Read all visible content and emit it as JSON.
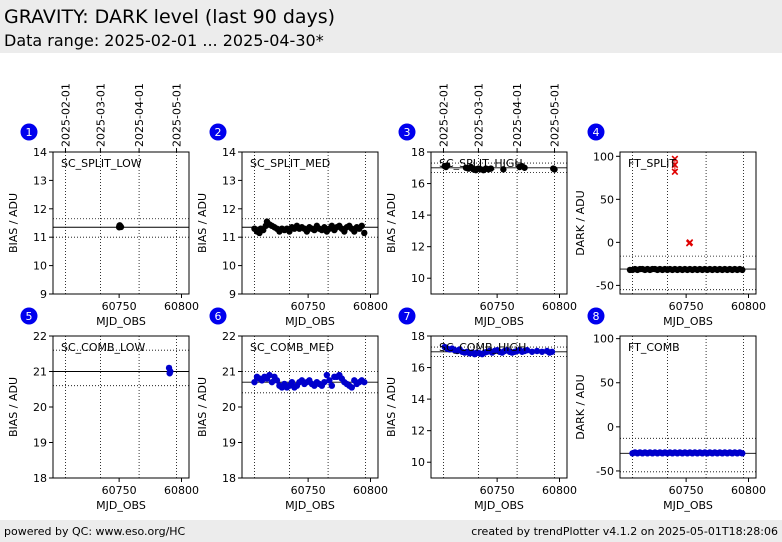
{
  "header": {
    "title": "GRAVITY: DARK level (last 90 days)",
    "subtitle": "Data range: 2025-02-01 ... 2025-04-30*"
  },
  "footer": {
    "left": "powered by QC: www.eso.org/HC",
    "right": "created by trendPlotter v4.1.2 on 2025-05-01T18:28:06"
  },
  "date_ticks": [
    {
      "label": "2025-02-01",
      "mjd": 60707
    },
    {
      "label": "2025-03-01",
      "mjd": 60735
    },
    {
      "label": "2025-04-01",
      "mjd": 60766
    },
    {
      "label": "2025-05-01",
      "mjd": 60796
    }
  ],
  "chart_data": [
    {
      "type": "scatter",
      "badge": "1",
      "label": "SC_SPLIT_LOW",
      "xlabel": "MJD_OBS",
      "ylabel": "BIAS / ADU",
      "xlim": [
        60697,
        60806
      ],
      "ylim": [
        9,
        14
      ],
      "yticks": [
        9,
        10,
        11,
        12,
        13,
        14
      ],
      "xticks": [
        60750,
        60800
      ],
      "date_axis": true,
      "ref_lines": [
        11.35
      ],
      "dotted_lines": [
        11.0,
        11.65
      ],
      "color": "#000000",
      "marker": "circle",
      "x_mjd": [],
      "points": [
        [
          60750,
          11.35
        ],
        [
          60750.5,
          11.42
        ],
        [
          60751,
          11.38
        ],
        [
          60751.5,
          11.36
        ],
        [
          60750.2,
          11.4
        ]
      ]
    },
    {
      "type": "scatter",
      "badge": "2",
      "label": "SC_SPLIT_MED",
      "xlabel": "MJD_OBS",
      "ylabel": "BIAS / ADU",
      "xlim": [
        60697,
        60806
      ],
      "ylim": [
        9,
        14
      ],
      "yticks": [
        9,
        10,
        11,
        12,
        13,
        14
      ],
      "xticks": [
        60750,
        60800
      ],
      "date_axis": false,
      "ref_lines": [
        11.35
      ],
      "dotted_lines": [
        11.0,
        11.65
      ],
      "color": "#000000",
      "marker": "circle",
      "points": [
        [
          60707,
          11.3
        ],
        [
          60709,
          11.2
        ],
        [
          60711,
          11.15
        ],
        [
          60712,
          11.3
        ],
        [
          60714,
          11.25
        ],
        [
          60716,
          11.4
        ],
        [
          60717,
          11.55
        ],
        [
          60719,
          11.45
        ],
        [
          60721,
          11.4
        ],
        [
          60723,
          11.35
        ],
        [
          60725,
          11.3
        ],
        [
          60727,
          11.2
        ],
        [
          60729,
          11.3
        ],
        [
          60731,
          11.25
        ],
        [
          60733,
          11.3
        ],
        [
          60735,
          11.2
        ],
        [
          60737,
          11.35
        ],
        [
          60739,
          11.3
        ],
        [
          60741,
          11.4
        ],
        [
          60743,
          11.3
        ],
        [
          60745,
          11.35
        ],
        [
          60747,
          11.3
        ],
        [
          60749,
          11.2
        ],
        [
          60751,
          11.35
        ],
        [
          60753,
          11.3
        ],
        [
          60755,
          11.25
        ],
        [
          60757,
          11.4
        ],
        [
          60759,
          11.3
        ],
        [
          60761,
          11.25
        ],
        [
          60763,
          11.35
        ],
        [
          60765,
          11.2
        ],
        [
          60767,
          11.3
        ],
        [
          60769,
          11.4
        ],
        [
          60771,
          11.25
        ],
        [
          60773,
          11.35
        ],
        [
          60775,
          11.4
        ],
        [
          60777,
          11.3
        ],
        [
          60779,
          11.2
        ],
        [
          60781,
          11.35
        ],
        [
          60783,
          11.4
        ],
        [
          60785,
          11.3
        ],
        [
          60787,
          11.2
        ],
        [
          60789,
          11.35
        ],
        [
          60791,
          11.3
        ],
        [
          60793,
          11.4
        ],
        [
          60795,
          11.15
        ]
      ]
    },
    {
      "type": "scatter",
      "badge": "3",
      "label": "SC_SPLIT_HIGH",
      "xlabel": "MJD_OBS",
      "ylabel": "BIAS / ADU",
      "xlim": [
        60697,
        60806
      ],
      "ylim": [
        9,
        18
      ],
      "yticks": [
        10,
        12,
        14,
        16,
        18
      ],
      "xticks": [
        60750,
        60800
      ],
      "date_axis": true,
      "ref_lines": [
        17.0
      ],
      "dotted_lines": [
        16.7,
        17.3
      ],
      "color": "#000000",
      "marker": "circle",
      "points": [
        [
          60708,
          17.1
        ],
        [
          60709,
          17.05
        ],
        [
          60710,
          17.15
        ],
        [
          60725,
          17.0
        ],
        [
          60727,
          16.95
        ],
        [
          60729,
          17.05
        ],
        [
          60731,
          16.9
        ],
        [
          60733,
          16.85
        ],
        [
          60735,
          16.95
        ],
        [
          60737,
          16.9
        ],
        [
          60739,
          16.85
        ],
        [
          60741,
          16.95
        ],
        [
          60743,
          16.9
        ],
        [
          60745,
          16.95
        ],
        [
          60755,
          16.9
        ],
        [
          60768,
          17.05
        ],
        [
          60770,
          17.1
        ],
        [
          60772,
          17.0
        ],
        [
          60795,
          16.95
        ],
        [
          60796,
          16.9
        ]
      ]
    },
    {
      "type": "scatter",
      "badge": "4",
      "label": "FT_SPLIT",
      "xlabel": "MJD_OBS",
      "ylabel": "DARK / ADU",
      "xlim": [
        60697,
        60806
      ],
      "ylim": [
        -60,
        105
      ],
      "yticks": [
        -50,
        0,
        50,
        100
      ],
      "xticks": [
        60750,
        60800
      ],
      "date_axis": false,
      "ref_lines": [
        -31
      ],
      "dotted_lines": [
        -16,
        -55
      ],
      "color": "#000000",
      "marker": "circle",
      "points": [
        [
          60705,
          -32
        ],
        [
          60707,
          -32
        ],
        [
          60709,
          -31
        ],
        [
          60711,
          -32
        ],
        [
          60713,
          -31
        ],
        [
          60715,
          -31
        ],
        [
          60717,
          -32
        ],
        [
          60719,
          -31
        ],
        [
          60721,
          -32
        ],
        [
          60723,
          -31
        ],
        [
          60725,
          -31
        ],
        [
          60727,
          -32
        ],
        [
          60729,
          -31
        ],
        [
          60731,
          -32
        ],
        [
          60733,
          -31
        ],
        [
          60735,
          -32
        ],
        [
          60737,
          -31
        ],
        [
          60739,
          -32
        ],
        [
          60741,
          -31
        ],
        [
          60743,
          -32
        ],
        [
          60745,
          -31
        ],
        [
          60747,
          -32
        ],
        [
          60749,
          -31
        ],
        [
          60751,
          -32
        ],
        [
          60753,
          -31
        ],
        [
          60755,
          -32
        ],
        [
          60757,
          -31
        ],
        [
          60759,
          -32
        ],
        [
          60761,
          -31
        ],
        [
          60763,
          -32
        ],
        [
          60765,
          -31
        ],
        [
          60767,
          -32
        ],
        [
          60769,
          -31
        ],
        [
          60771,
          -32
        ],
        [
          60773,
          -31
        ],
        [
          60775,
          -32
        ],
        [
          60777,
          -31
        ],
        [
          60779,
          -32
        ],
        [
          60781,
          -31
        ],
        [
          60783,
          -32
        ],
        [
          60785,
          -31
        ],
        [
          60787,
          -32
        ],
        [
          60789,
          -31
        ],
        [
          60791,
          -32
        ],
        [
          60793,
          -31
        ],
        [
          60795,
          -32
        ]
      ],
      "extra": {
        "color": "#e00000",
        "marker": "x",
        "points": [
          [
            60741,
            97
          ],
          [
            60741,
            90
          ],
          [
            60741,
            82
          ],
          [
            60753,
            0
          ],
          [
            60752.5,
            -1
          ]
        ]
      }
    },
    {
      "type": "scatter",
      "badge": "5",
      "label": "SC_COMB_LOW",
      "xlabel": "MJD_OBS",
      "ylabel": "BIAS / ADU",
      "xlim": [
        60697,
        60806
      ],
      "ylim": [
        18,
        22
      ],
      "yticks": [
        18,
        19,
        20,
        21,
        22
      ],
      "xticks": [
        60750,
        60800
      ],
      "date_axis": false,
      "ref_lines": [
        21.0
      ],
      "dotted_lines": [
        20.6,
        21.6
      ],
      "color": "#0000cc",
      "marker": "circle",
      "points": [
        [
          60790,
          21.1
        ],
        [
          60790.5,
          20.95
        ],
        [
          60791,
          21.0
        ]
      ]
    },
    {
      "type": "scatter",
      "badge": "6",
      "label": "SC_COMB_MED",
      "xlabel": "MJD_OBS",
      "ylabel": "BIAS / ADU",
      "xlim": [
        60697,
        60806
      ],
      "ylim": [
        18,
        22
      ],
      "yticks": [
        18,
        19,
        20,
        21,
        22
      ],
      "xticks": [
        60750,
        60800
      ],
      "date_axis": false,
      "ref_lines": [
        20.7
      ],
      "dotted_lines": [
        20.4,
        21.0
      ],
      "color": "#0000cc",
      "marker": "circle",
      "points": [
        [
          60707,
          20.7
        ],
        [
          60709,
          20.85
        ],
        [
          60711,
          20.8
        ],
        [
          60713,
          20.75
        ],
        [
          60715,
          20.85
        ],
        [
          60717,
          20.8
        ],
        [
          60719,
          20.9
        ],
        [
          60721,
          20.7
        ],
        [
          60723,
          20.85
        ],
        [
          60725,
          20.75
        ],
        [
          60727,
          20.6
        ],
        [
          60729,
          20.55
        ],
        [
          60731,
          20.65
        ],
        [
          60733,
          20.55
        ],
        [
          60735,
          20.6
        ],
        [
          60737,
          20.7
        ],
        [
          60739,
          20.55
        ],
        [
          60741,
          20.6
        ],
        [
          60743,
          20.7
        ],
        [
          60745,
          20.75
        ],
        [
          60747,
          20.65
        ],
        [
          60749,
          20.7
        ],
        [
          60751,
          20.75
        ],
        [
          60753,
          20.65
        ],
        [
          60755,
          20.6
        ],
        [
          60757,
          20.7
        ],
        [
          60759,
          20.65
        ],
        [
          60761,
          20.6
        ],
        [
          60763,
          20.7
        ],
        [
          60765,
          20.9
        ],
        [
          60767,
          20.75
        ],
        [
          60769,
          20.6
        ],
        [
          60771,
          20.85
        ],
        [
          60773,
          20.85
        ],
        [
          60775,
          20.9
        ],
        [
          60777,
          20.8
        ],
        [
          60779,
          20.7
        ],
        [
          60781,
          20.65
        ],
        [
          60783,
          20.6
        ],
        [
          60785,
          20.55
        ],
        [
          60787,
          20.75
        ],
        [
          60789,
          20.65
        ],
        [
          60791,
          20.7
        ],
        [
          60793,
          20.75
        ],
        [
          60795,
          20.7
        ]
      ]
    },
    {
      "type": "scatter",
      "badge": "7",
      "label": "SC_COMB_HIGH",
      "xlabel": "MJD_OBS",
      "ylabel": "BIAS / ADU",
      "xlim": [
        60697,
        60806
      ],
      "ylim": [
        9,
        18
      ],
      "yticks": [
        10,
        12,
        14,
        16,
        18
      ],
      "xticks": [
        60750,
        60800
      ],
      "date_axis": false,
      "ref_lines": [
        17.0
      ],
      "dotted_lines": [
        16.7,
        17.3
      ],
      "color": "#0000cc",
      "marker": "circle",
      "points": [
        [
          60708,
          17.3
        ],
        [
          60710,
          17.2
        ],
        [
          60712,
          17.15
        ],
        [
          60714,
          17.2
        ],
        [
          60716,
          17.1
        ],
        [
          60718,
          17.05
        ],
        [
          60720,
          17.15
        ],
        [
          60722,
          17.0
        ],
        [
          60724,
          16.95
        ],
        [
          60726,
          17.0
        ],
        [
          60728,
          16.9
        ],
        [
          60730,
          16.95
        ],
        [
          60732,
          16.85
        ],
        [
          60734,
          16.95
        ],
        [
          60736,
          16.9
        ],
        [
          60738,
          16.85
        ],
        [
          60740,
          16.95
        ],
        [
          60742,
          17.0
        ],
        [
          60744,
          17.05
        ],
        [
          60746,
          16.95
        ],
        [
          60748,
          17.05
        ],
        [
          60750,
          17.1
        ],
        [
          60752,
          17.0
        ],
        [
          60754,
          16.95
        ],
        [
          60756,
          17.05
        ],
        [
          60758,
          17.1
        ],
        [
          60760,
          17.0
        ],
        [
          60762,
          16.95
        ],
        [
          60764,
          17.0
        ],
        [
          60766,
          17.05
        ],
        [
          60768,
          17.1
        ],
        [
          60770,
          17.0
        ],
        [
          60772,
          17.05
        ],
        [
          60774,
          17.1
        ],
        [
          60778,
          17.0
        ],
        [
          60782,
          17.05
        ],
        [
          60786,
          17.0
        ],
        [
          60790,
          17.05
        ],
        [
          60792,
          16.95
        ],
        [
          60794,
          17.0
        ]
      ]
    },
    {
      "type": "scatter",
      "badge": "8",
      "label": "FT_COMB",
      "xlabel": "MJD_OBS",
      "ylabel": "DARK / ADU",
      "xlim": [
        60697,
        60806
      ],
      "ylim": [
        -58,
        103
      ],
      "yticks": [
        -50,
        0,
        50,
        100
      ],
      "xticks": [
        60750,
        60800
      ],
      "date_axis": false,
      "ref_lines": [
        -30
      ],
      "dotted_lines": [
        -13,
        -51
      ],
      "color": "#0000cc",
      "marker": "circle",
      "points": [
        [
          60707,
          -30
        ],
        [
          60709,
          -29
        ],
        [
          60711,
          -30
        ],
        [
          60713,
          -29
        ],
        [
          60715,
          -30
        ],
        [
          60717,
          -29
        ],
        [
          60719,
          -30
        ],
        [
          60721,
          -29
        ],
        [
          60723,
          -30
        ],
        [
          60725,
          -29
        ],
        [
          60727,
          -30
        ],
        [
          60729,
          -29
        ],
        [
          60731,
          -30
        ],
        [
          60733,
          -29
        ],
        [
          60735,
          -30
        ],
        [
          60737,
          -29
        ],
        [
          60739,
          -30
        ],
        [
          60741,
          -29
        ],
        [
          60743,
          -30
        ],
        [
          60745,
          -29
        ],
        [
          60747,
          -30
        ],
        [
          60749,
          -29
        ],
        [
          60751,
          -30
        ],
        [
          60753,
          -29
        ],
        [
          60755,
          -30
        ],
        [
          60757,
          -29
        ],
        [
          60759,
          -30
        ],
        [
          60761,
          -29
        ],
        [
          60763,
          -30
        ],
        [
          60765,
          -29
        ],
        [
          60767,
          -30
        ],
        [
          60769,
          -29
        ],
        [
          60771,
          -30
        ],
        [
          60773,
          -29
        ],
        [
          60775,
          -30
        ],
        [
          60777,
          -29
        ],
        [
          60779,
          -30
        ],
        [
          60781,
          -29
        ],
        [
          60783,
          -30
        ],
        [
          60785,
          -29
        ],
        [
          60787,
          -30
        ],
        [
          60789,
          -29
        ],
        [
          60791,
          -30
        ],
        [
          60793,
          -29
        ],
        [
          60795,
          -30
        ]
      ]
    }
  ]
}
